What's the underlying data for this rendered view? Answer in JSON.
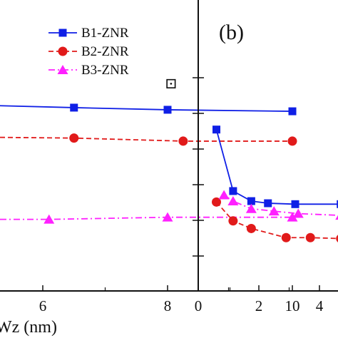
{
  "chart_data": [
    {
      "type": "line",
      "panel": "a",
      "title": "",
      "xlabel": "Wz (nm)",
      "ylabel": "",
      "xlim": [
        0,
        11
      ],
      "ylim": [
        0,
        8
      ],
      "x_tick_labels": [
        "6",
        "8",
        "10"
      ],
      "series": [
        {
          "name": "B1-ZNR",
          "color": "#0f1fe6",
          "marker": "square",
          "linestyle": "solid",
          "x": [
            5.0,
            6.5,
            8.0,
            10.0
          ],
          "y": [
            6.1,
            6.02,
            5.95,
            5.9
          ]
        },
        {
          "name": "B2-ZNR",
          "color": "#e11a1a",
          "marker": "circle",
          "linestyle": "dashed",
          "x": [
            5.0,
            6.5,
            8.25,
            10.0
          ],
          "y": [
            5.05,
            5.02,
            4.92,
            4.92
          ]
        },
        {
          "name": "B3-ZNR",
          "color": "#ff20ff",
          "marker": "triangle",
          "linestyle": "dashdot",
          "x": [
            6.1,
            8.0,
            10.0
          ],
          "y": [
            2.35,
            2.42,
            2.42
          ]
        }
      ],
      "legend": {
        "placement": "top-right",
        "entries": [
          {
            "label": "B1-ZNR",
            "color": "#0f1fe6"
          },
          {
            "label": "B2-ZNR",
            "color": "#e11a1a"
          },
          {
            "label": "B3-ZNR",
            "color": "#ff20ff"
          }
        ]
      },
      "annotation": "⊡"
    },
    {
      "type": "line",
      "panel": "b",
      "title": "(b)",
      "xlabel": "",
      "ylabel": "",
      "xlim": [
        0,
        4.7
      ],
      "ylim": [
        0,
        8
      ],
      "x_tick_labels": [
        "0",
        "2",
        "4"
      ],
      "series": [
        {
          "name": "B1-ZNR",
          "color": "#0f1fe6",
          "marker": "square",
          "linestyle": "solid",
          "x": [
            0.6,
            1.15,
            1.75,
            2.3,
            3.2,
            4.7
          ],
          "y": [
            5.3,
            3.28,
            2.95,
            2.88,
            2.85,
            2.85
          ]
        },
        {
          "name": "B2-ZNR",
          "color": "#e11a1a",
          "marker": "circle",
          "linestyle": "dashed",
          "x": [
            0.6,
            1.15,
            1.75,
            2.9,
            3.7,
            4.7
          ],
          "y": [
            2.92,
            2.3,
            2.05,
            1.75,
            1.75,
            1.72
          ]
        },
        {
          "name": "B3-ZNR",
          "color": "#ff20ff",
          "marker": "triangle",
          "linestyle": "dashdot",
          "x": [
            0.85,
            1.15,
            1.75,
            2.5,
            3.3,
            4.7
          ],
          "y": [
            3.15,
            2.95,
            2.7,
            2.62,
            2.54,
            2.48
          ]
        }
      ]
    }
  ]
}
